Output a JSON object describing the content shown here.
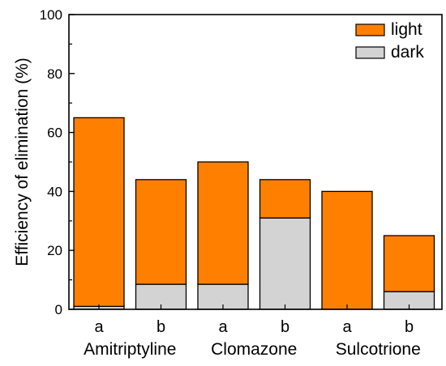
{
  "chart_data": {
    "type": "bar",
    "stacked": true,
    "ylabel": "Efficiency of elimination (%)",
    "ylim": [
      0,
      100
    ],
    "yticks": [
      "0",
      "20",
      "40",
      "60",
      "80",
      "100"
    ],
    "yticks_values": [
      0,
      20,
      40,
      60,
      80,
      100
    ],
    "categories": [
      "a",
      "b",
      "a",
      "b",
      "a",
      "b"
    ],
    "groups": [
      "Amitriptyline",
      "Clomazone",
      "Sulcotrione"
    ],
    "series": [
      {
        "name": "dark",
        "color": "#d3d3d3",
        "values": [
          1,
          8.5,
          8.5,
          31,
          0,
          6
        ]
      },
      {
        "name": "light",
        "color": "#ff8000",
        "values": [
          64,
          35.5,
          41.5,
          13,
          40,
          19
        ]
      }
    ],
    "legend_position": "top-right",
    "legend_order": [
      "light",
      "dark"
    ],
    "grid": false
  }
}
